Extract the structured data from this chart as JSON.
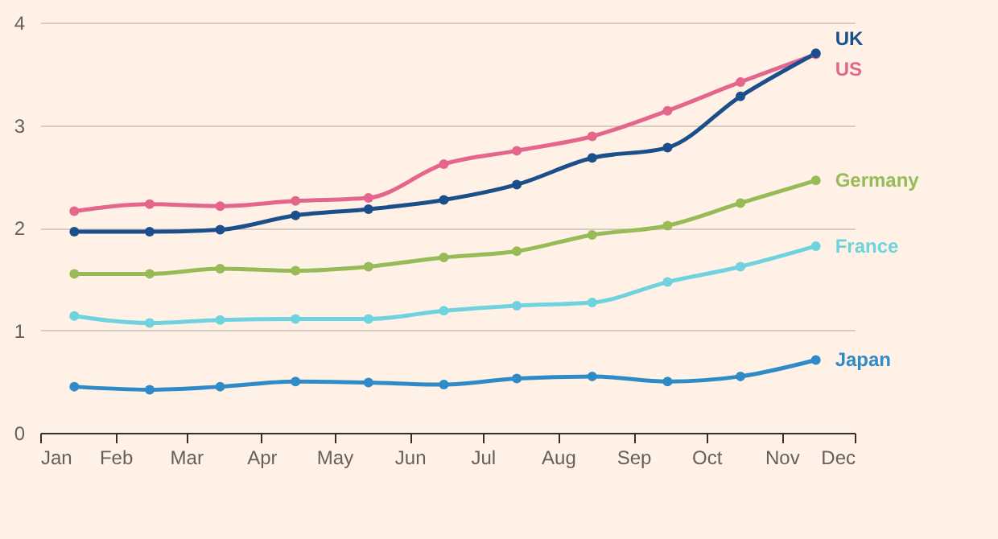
{
  "chart_data": {
    "type": "line",
    "x": [
      "--01-15",
      "--02-15",
      "--03-15",
      "--04-15",
      "--05-15",
      "--06-15",
      "--07-15",
      "--08-15",
      "--09-15",
      "--10-15",
      "--11-15"
    ],
    "series": [
      {
        "name": "UK",
        "color": "#1a4f8b",
        "values": [
          1.96,
          1.96,
          1.98,
          2.12,
          2.18,
          2.27,
          2.42,
          2.68,
          2.78,
          3.28,
          3.7
        ]
      },
      {
        "name": "US",
        "color": "#e5668c",
        "values": [
          2.16,
          2.23,
          2.21,
          2.26,
          2.29,
          2.62,
          2.75,
          2.89,
          3.14,
          3.42,
          3.69
        ]
      },
      {
        "name": "Germany",
        "color": "#96bb57",
        "values": [
          1.55,
          1.55,
          1.6,
          1.58,
          1.62,
          1.71,
          1.77,
          1.93,
          2.02,
          2.24,
          2.46
        ]
      },
      {
        "name": "France",
        "color": "#6fd3df",
        "values": [
          1.14,
          1.07,
          1.1,
          1.11,
          1.11,
          1.19,
          1.24,
          1.27,
          1.47,
          1.62,
          1.82
        ]
      },
      {
        "name": "Japan",
        "color": "#2e8bc8",
        "values": [
          0.45,
          0.42,
          0.45,
          0.5,
          0.49,
          0.47,
          0.53,
          0.55,
          0.5,
          0.55,
          0.71
        ]
      }
    ],
    "xlim": [
      "--01-01",
      "--12-01"
    ],
    "xticks": [
      {
        "value": "--01-01",
        "label": "Jan"
      },
      {
        "value": "--02-01",
        "label": "Feb"
      },
      {
        "value": "--03-01",
        "label": "Mar"
      },
      {
        "value": "--04-01",
        "label": "Apr"
      },
      {
        "value": "--05-01",
        "label": "May"
      },
      {
        "value": "--06-01",
        "label": "Jun"
      },
      {
        "value": "--07-01",
        "label": "Jul"
      },
      {
        "value": "--08-01",
        "label": "Aug"
      },
      {
        "value": "--09-01",
        "label": "Sep"
      },
      {
        "value": "--10-01",
        "label": "Oct"
      },
      {
        "value": "--11-01",
        "label": "Nov"
      },
      {
        "value": "--12-01",
        "label": "Dec"
      }
    ],
    "ylim": [
      0,
      4
    ],
    "yticks": [
      0,
      1,
      2,
      3,
      4
    ],
    "grid": "y",
    "legend": false,
    "marker": "circle",
    "line_style": "solid"
  }
}
